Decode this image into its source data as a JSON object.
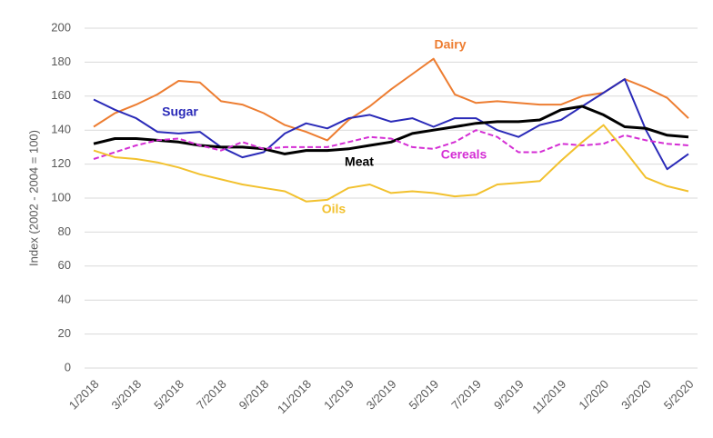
{
  "chart_data": {
    "type": "line",
    "y_label": "Index (2002 - 2004 = 100)",
    "categories": [
      "1/2018",
      null,
      "3/2018",
      null,
      "5/2018",
      null,
      "7/2018",
      null,
      "9/2018",
      null,
      "11/2018",
      null,
      "1/2019",
      null,
      "3/2019",
      null,
      "5/2019",
      null,
      "7/2019",
      null,
      "9/2019",
      null,
      "11/2019",
      null,
      "1/2020",
      null,
      "3/2020",
      null,
      "5/2020"
    ],
    "ylim": [
      0,
      200
    ],
    "yticks": [
      0,
      20,
      40,
      60,
      80,
      100,
      120,
      140,
      160,
      180,
      200
    ],
    "grid": true,
    "series": [
      {
        "name": "Dairy",
        "color": "#ed7d31",
        "values": [
          142,
          150,
          155,
          161,
          169,
          168,
          157,
          155,
          150,
          143,
          139,
          134,
          146,
          154,
          164,
          173,
          182,
          161,
          156,
          157,
          156,
          155,
          155,
          160,
          162,
          170,
          165,
          159,
          147
        ]
      },
      {
        "name": "Sugar",
        "color": "#2a2ab8",
        "values": [
          158,
          152,
          147,
          139,
          138,
          139,
          130,
          124,
          127,
          138,
          144,
          141,
          147,
          149,
          145,
          147,
          142,
          147,
          147,
          140,
          136,
          143,
          146,
          154,
          162,
          170,
          140,
          117,
          126
        ]
      },
      {
        "name": "Meat",
        "color": "#000000",
        "values": [
          132,
          135,
          135,
          134,
          133,
          131,
          130,
          130,
          129,
          126,
          128,
          128,
          129,
          131,
          133,
          138,
          140,
          142,
          144,
          145,
          145,
          146,
          152,
          154,
          149,
          142,
          141,
          137,
          136
        ]
      },
      {
        "name": "Cereals",
        "color": "#d42ed4",
        "dashed": true,
        "values": [
          123,
          127,
          131,
          134,
          135,
          131,
          128,
          133,
          129,
          130,
          130,
          130,
          133,
          136,
          135,
          130,
          129,
          133,
          140,
          136,
          127,
          127,
          132,
          131,
          132,
          137,
          134,
          132,
          131
        ]
      },
      {
        "name": "Oils",
        "color": "#f2c12e",
        "values": [
          128,
          124,
          123,
          121,
          118,
          114,
          111,
          108,
          106,
          104,
          98,
          99,
          106,
          108,
          103,
          104,
          103,
          101,
          102,
          108,
          109,
          110,
          122,
          133,
          143,
          128,
          112,
          107,
          104
        ]
      }
    ]
  }
}
